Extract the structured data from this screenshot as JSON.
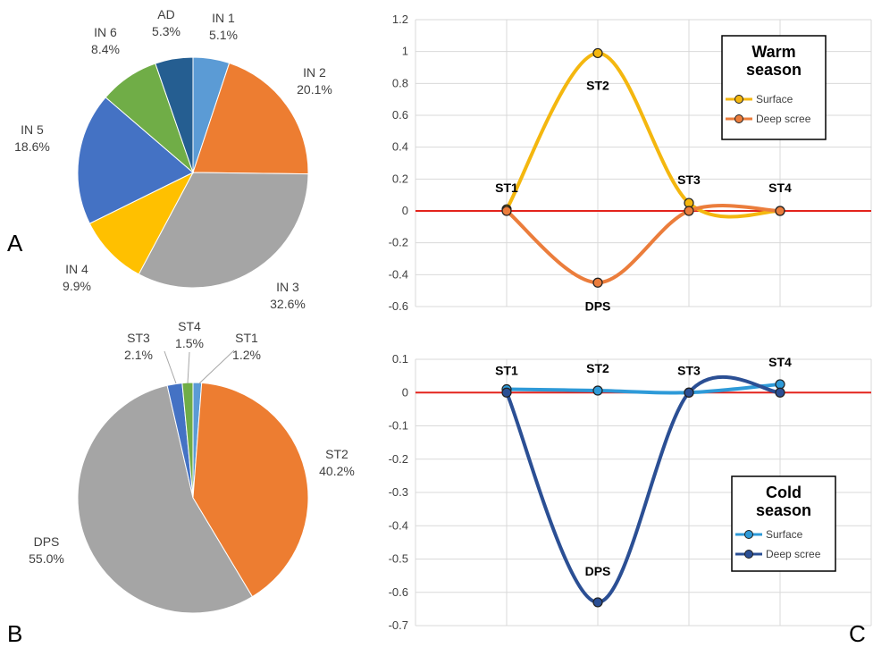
{
  "panel_labels": {
    "a": "A",
    "b": "B",
    "c": "C"
  },
  "colors": {
    "zero_line": "#e3231c",
    "grid": "#d9d9d9",
    "warm_surface": "#f4b70f",
    "warm_deep": "#eb7d3c",
    "cold_surface": "#2e9ad8",
    "cold_deep": "#2b4f94"
  },
  "chart_data": [
    {
      "type": "pie",
      "panel": "A",
      "slices": [
        {
          "label": "IN 1",
          "value": 5.1,
          "value_label": "5.1%",
          "color": "#5b9bd5"
        },
        {
          "label": "IN 2",
          "value": 20.1,
          "value_label": "20.1%",
          "color": "#ed7d31"
        },
        {
          "label": "IN 3",
          "value": 32.6,
          "value_label": "32.6%",
          "color": "#a5a5a5"
        },
        {
          "label": "IN 4",
          "value": 9.9,
          "value_label": "9.9%",
          "color": "#ffc000"
        },
        {
          "label": "IN 5",
          "value": 18.6,
          "value_label": "18.6%",
          "color": "#4472c4"
        },
        {
          "label": "IN 6",
          "value": 8.4,
          "value_label": "8.4%",
          "color": "#70ad47"
        },
        {
          "label": "AD",
          "value": 5.3,
          "value_label": "5.3%",
          "color": "#255e91"
        }
      ]
    },
    {
      "type": "pie",
      "panel": "B",
      "slices": [
        {
          "label": "ST1",
          "value": 1.2,
          "value_label": "1.2%",
          "color": "#5b9bd5"
        },
        {
          "label": "ST2",
          "value": 40.2,
          "value_label": "40.2%",
          "color": "#ed7d31"
        },
        {
          "label": "DPS",
          "value": 55.0,
          "value_label": "55.0%",
          "color": "#a5a5a5"
        },
        {
          "label": "ST3",
          "value": 2.1,
          "value_label": "2.1%",
          "color": "#4472c4"
        },
        {
          "label": "ST4",
          "value": 1.5,
          "value_label": "1.5%",
          "color": "#70ad47"
        }
      ]
    },
    {
      "type": "line",
      "panel": "C-top",
      "legend_title": [
        "Warm",
        "season"
      ],
      "legend_position": "top-right",
      "ylim": [
        -0.6,
        1.2
      ],
      "yticks": [
        1.2,
        1,
        0.8,
        0.6,
        0.4,
        0.2,
        0,
        -0.2,
        -0.4,
        -0.6
      ],
      "grid": true,
      "series": [
        {
          "name": "Surface",
          "x": [
            1,
            2,
            3,
            4
          ],
          "values": [
            0.01,
            0.99,
            0.05,
            0.0
          ],
          "color": "#f4b70f"
        },
        {
          "name": "Deep scree",
          "x": [
            1,
            2,
            3,
            4
          ],
          "values": [
            0.0,
            -0.45,
            0.0,
            0.0
          ],
          "color": "#eb7d3c"
        }
      ],
      "annotations": [
        {
          "text": "ST1",
          "x": 1,
          "y": 0.0
        },
        {
          "text": "ST2",
          "x": 2,
          "y": 0.99
        },
        {
          "text": "ST3",
          "x": 3,
          "y": 0.05
        },
        {
          "text": "ST4",
          "x": 4,
          "y": 0.0
        },
        {
          "text": "DPS",
          "x": 2,
          "y": -0.45
        }
      ]
    },
    {
      "type": "line",
      "panel": "C-bottom",
      "legend_title": [
        "Cold",
        "season"
      ],
      "legend_position": "bottom-right",
      "ylim": [
        -0.7,
        0.1
      ],
      "yticks": [
        0.1,
        0,
        -0.1,
        -0.2,
        -0.3,
        -0.4,
        -0.5,
        -0.6,
        -0.7
      ],
      "grid": true,
      "series": [
        {
          "name": "Surface",
          "x": [
            1,
            2,
            3,
            4
          ],
          "values": [
            0.01,
            0.006,
            0.0,
            0.025
          ],
          "color": "#2e9ad8"
        },
        {
          "name": "Deep scree",
          "x": [
            1,
            2,
            3,
            4
          ],
          "values": [
            0.0,
            -0.63,
            0.0,
            0.0
          ],
          "color": "#2b4f94"
        }
      ],
      "annotations": [
        {
          "text": "ST1",
          "x": 1,
          "y": 0.0
        },
        {
          "text": "ST2",
          "x": 2,
          "y": 0.006
        },
        {
          "text": "ST3",
          "x": 3,
          "y": 0.0
        },
        {
          "text": "ST4",
          "x": 4,
          "y": 0.025
        },
        {
          "text": "DPS",
          "x": 2,
          "y": -0.63
        }
      ]
    }
  ]
}
